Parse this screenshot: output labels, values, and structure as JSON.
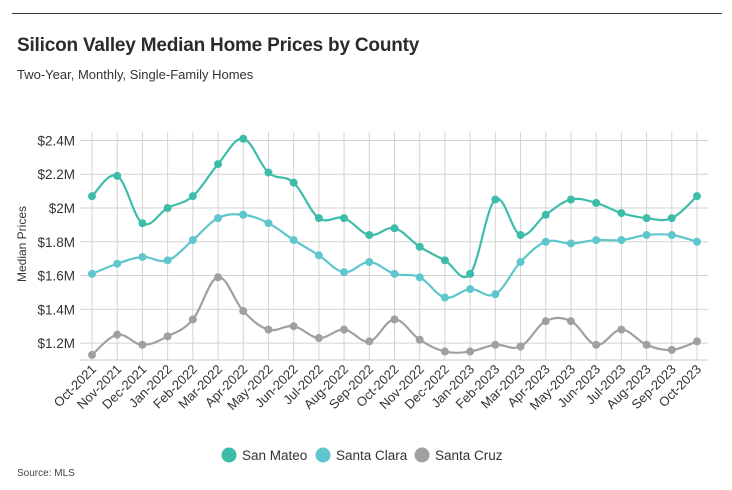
{
  "header": {
    "title": "Silicon Valley Median Home Prices by County",
    "subtitle": "Two-Year, Monthly, Single-Family Homes"
  },
  "footer": {
    "source": "Source: MLS"
  },
  "chart_data": {
    "type": "line",
    "title": "Silicon Valley Median Home Prices by County",
    "subtitle": "Two-Year, Monthly, Single-Family Homes",
    "xlabel": "",
    "ylabel": "Median Prices",
    "ylim": [
      1.1,
      2.45
    ],
    "yticks": [
      1.2,
      1.4,
      1.6,
      1.8,
      2.0,
      2.2,
      2.4
    ],
    "ytick_labels": [
      "$1.2M",
      "$1.4M",
      "$1.6M",
      "$1.8M",
      "$2M",
      "$2.2M",
      "$2.4M"
    ],
    "y_unit": "millions USD",
    "grid": true,
    "smooth": true,
    "legend_position": "bottom-center",
    "categories": [
      "Oct-2021",
      "Nov-2021",
      "Dec-2021",
      "Jan-2022",
      "Feb-2022",
      "Mar-2022",
      "Apr-2022",
      "May-2022",
      "Jun-2022",
      "Jul-2022",
      "Aug-2022",
      "Sep-2022",
      "Oct-2022",
      "Nov-2022",
      "Dec-2022",
      "Jan-2023",
      "Feb-2023",
      "Mar-2023",
      "Apr-2023",
      "May-2023",
      "Jun-2023",
      "Jul-2023",
      "Aug-2023",
      "Sep-2023",
      "Oct-2023"
    ],
    "series": [
      {
        "name": "San Mateo",
        "color": "#3dbda9",
        "values": [
          2.07,
          2.19,
          1.91,
          2.0,
          2.07,
          2.26,
          2.41,
          2.21,
          2.15,
          1.94,
          1.94,
          1.84,
          1.88,
          1.77,
          1.69,
          1.61,
          2.05,
          1.84,
          1.96,
          2.05,
          2.03,
          1.97,
          1.94,
          1.94,
          2.07
        ]
      },
      {
        "name": "Santa Clara",
        "color": "#5ec6cc",
        "values": [
          1.61,
          1.67,
          1.71,
          1.69,
          1.81,
          1.94,
          1.96,
          1.91,
          1.81,
          1.72,
          1.62,
          1.68,
          1.61,
          1.59,
          1.47,
          1.52,
          1.49,
          1.68,
          1.8,
          1.79,
          1.81,
          1.81,
          1.84,
          1.84,
          1.8
        ]
      },
      {
        "name": "Santa Cruz",
        "color": "#a0a0a0",
        "values": [
          1.13,
          1.25,
          1.19,
          1.24,
          1.34,
          1.59,
          1.39,
          1.28,
          1.3,
          1.23,
          1.28,
          1.21,
          1.34,
          1.22,
          1.15,
          1.15,
          1.19,
          1.18,
          1.33,
          1.33,
          1.19,
          1.28,
          1.19,
          1.16,
          1.21
        ]
      }
    ]
  }
}
